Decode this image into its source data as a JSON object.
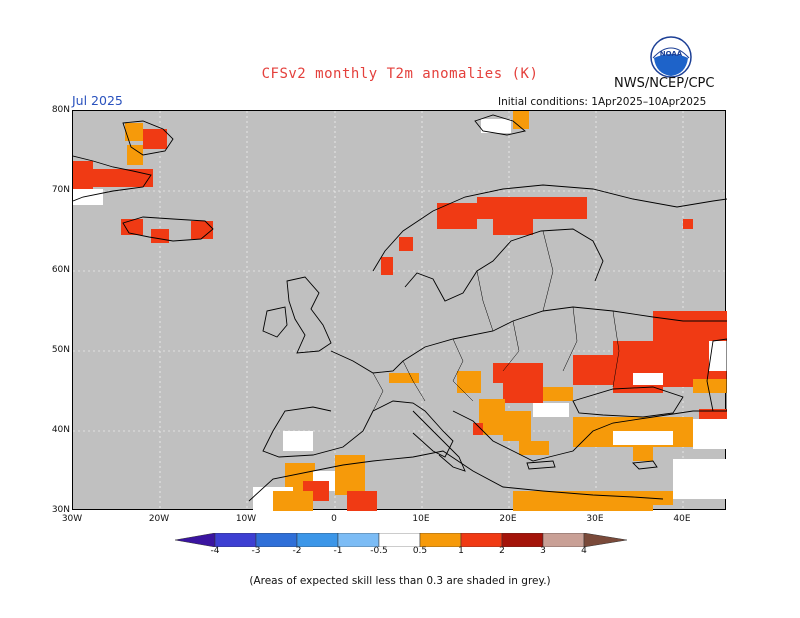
{
  "header": {
    "title": "CFSv2 monthly T2m anomalies (K)",
    "agency": "NWS/NCEP/CPC",
    "month": "Jul 2025",
    "initial_conditions": "Initial conditions: 1Apr2025–10Apr2025"
  },
  "map": {
    "lat_labels": [
      "80N",
      "70N",
      "60N",
      "50N",
      "40N",
      "30N"
    ],
    "lon_labels": [
      "30W",
      "20W",
      "10W",
      "0",
      "10E",
      "20E",
      "30E",
      "40E"
    ],
    "background_color": "#c0c0c0",
    "anomaly_regions": [
      {
        "name": "Greenland east coast",
        "category": "1 to 2"
      },
      {
        "name": "Iceland",
        "category": "1 to 2"
      },
      {
        "name": "Northern Scandinavia",
        "category": "1 to 2"
      },
      {
        "name": "Southern Russia / Ukraine",
        "category": "1 to 2"
      },
      {
        "name": "Balkans",
        "category": "0.5 to 2"
      },
      {
        "name": "Turkey",
        "category": "0.5 to 1"
      },
      {
        "name": "North Africa",
        "category": "0.5 to 1"
      }
    ]
  },
  "colorbar": {
    "labels": [
      "-4",
      "-3",
      "-2",
      "-1",
      "-0.5",
      "0.5",
      "1",
      "2",
      "3",
      "4"
    ],
    "colors": [
      "#3a14a0",
      "#3d3fd2",
      "#2f6fd8",
      "#3c96e8",
      "#7cbcf5",
      "#ffffff",
      "#f69a0a",
      "#f03a14",
      "#a4140a",
      "#c9a096",
      "#7a4a3a"
    ]
  },
  "footnote": "(Areas of expected skill less than 0.3 are shaded in grey.)"
}
